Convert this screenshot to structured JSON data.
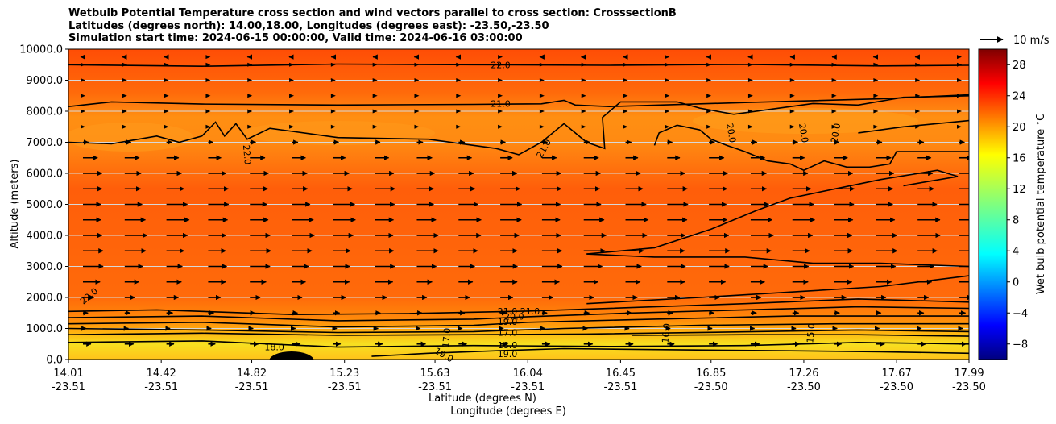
{
  "chart_data": {
    "type": "contour-quiver",
    "title_lines": [
      "Wetbulb Potential Temperature cross section and wind vectors parallel to cross section: CrosssectionB",
      "Latitudes (degrees north): 14.00,18.00, Longitudes (degrees east): -23.50,-23.50",
      "Simulation start time: 2024-06-15 00:00:00, Valid time: 2024-06-16 03:00:00"
    ],
    "xlabel_lat": "Latitude (degrees N)",
    "xlabel_lon": "Longitude (degrees E)",
    "ylabel": "Altitude (meters)",
    "xlim": [
      14.01,
      17.99
    ],
    "ylim": [
      0,
      10000
    ],
    "x_ticks": [
      {
        "lat": "14.01",
        "lon": "-23.51",
        "v": 14.01
      },
      {
        "lat": "14.42",
        "lon": "-23.51",
        "v": 14.42
      },
      {
        "lat": "14.82",
        "lon": "-23.51",
        "v": 14.82
      },
      {
        "lat": "15.23",
        "lon": "-23.51",
        "v": 15.23
      },
      {
        "lat": "15.63",
        "lon": "-23.51",
        "v": 15.63
      },
      {
        "lat": "16.04",
        "lon": "-23.51",
        "v": 16.04
      },
      {
        "lat": "16.45",
        "lon": "-23.51",
        "v": 16.45
      },
      {
        "lat": "16.85",
        "lon": "-23.50",
        "v": 16.85
      },
      {
        "lat": "17.26",
        "lon": "-23.50",
        "v": 17.26
      },
      {
        "lat": "17.67",
        "lon": "-23.50",
        "v": 17.67
      },
      {
        "lat": "17.99",
        "lon": "-23.50",
        "v": 17.99
      }
    ],
    "y_ticks": [
      "0.0",
      "1000.0",
      "2000.0",
      "3000.0",
      "4000.0",
      "5000.0",
      "6000.0",
      "7000.0",
      "8000.0",
      "9000.0",
      "10000.0"
    ],
    "grid": "horizontal",
    "colorbar": {
      "label": "Wet bulb potential temperature $^\\circ$C",
      "range": [
        -10,
        30
      ],
      "ticks": [
        "-8",
        "-4",
        "0",
        "4",
        "8",
        "12",
        "16",
        "20",
        "24",
        "28"
      ],
      "colormap": "jet"
    },
    "quiver_key": {
      "label": "10 m/s"
    },
    "contour_labels": [
      {
        "text": "22.0",
        "x": 15.92,
        "y": 9500,
        "rot": 0
      },
      {
        "text": "21.0",
        "x": 15.92,
        "y": 8250,
        "rot": 0
      },
      {
        "text": "22.0",
        "x": 14.8,
        "y": 6600,
        "rot": 85
      },
      {
        "text": "21.0",
        "x": 16.11,
        "y": 6800,
        "rot": -60
      },
      {
        "text": "20.0",
        "x": 16.94,
        "y": 7300,
        "rot": 80
      },
      {
        "text": "20.0",
        "x": 17.26,
        "y": 7300,
        "rot": 80
      },
      {
        "text": "20.0",
        "x": 17.4,
        "y": 7300,
        "rot": -80
      },
      {
        "text": "22.0",
        "x": 14.1,
        "y": 2050,
        "rot": -40
      },
      {
        "text": "21.0",
        "x": 15.95,
        "y": 1560,
        "rot": 0
      },
      {
        "text": "21.0",
        "x": 16.05,
        "y": 1560,
        "rot": 0
      },
      {
        "text": "20.0",
        "x": 15.98,
        "y": 1390,
        "rot": 0
      },
      {
        "text": "19.0",
        "x": 15.95,
        "y": 1220,
        "rot": 0
      },
      {
        "text": "17.0",
        "x": 15.95,
        "y": 870,
        "rot": 0
      },
      {
        "text": "18.0",
        "x": 14.92,
        "y": 400,
        "rot": 0
      },
      {
        "text": "18.0",
        "x": 15.95,
        "y": 470,
        "rot": 0
      },
      {
        "text": "19.0",
        "x": 15.95,
        "y": 180,
        "rot": 0
      },
      {
        "text": "19.0",
        "x": 15.67,
        "y": 150,
        "rot": 30
      },
      {
        "text": "17.0",
        "x": 15.68,
        "y": 700,
        "rot": -85
      },
      {
        "text": "16.0",
        "x": 16.65,
        "y": 850,
        "rot": -85
      },
      {
        "text": "15.0",
        "x": 17.29,
        "y": 850,
        "rot": -85
      }
    ],
    "contour_lines": [
      {
        "level": 22.0,
        "points": [
          [
            14.01,
            9500
          ],
          [
            14.6,
            9450
          ],
          [
            15.2,
            9520
          ],
          [
            15.8,
            9500
          ],
          [
            16.4,
            9480
          ],
          [
            17.0,
            9510
          ],
          [
            17.6,
            9460
          ],
          [
            17.99,
            9480
          ]
        ]
      },
      {
        "level": 21.0,
        "points": [
          [
            14.01,
            8150
          ],
          [
            14.2,
            8300
          ],
          [
            14.6,
            8230
          ],
          [
            15.2,
            8200
          ],
          [
            15.8,
            8220
          ],
          [
            16.1,
            8240
          ],
          [
            16.2,
            8350
          ],
          [
            16.25,
            8200
          ],
          [
            16.4,
            8150
          ],
          [
            17.0,
            8280
          ],
          [
            17.6,
            8400
          ],
          [
            17.99,
            8530
          ]
        ]
      },
      {
        "level": 21.0,
        "points": [
          [
            14.01,
            7000
          ],
          [
            14.2,
            6950
          ],
          [
            14.4,
            7200
          ],
          [
            14.5,
            7000
          ],
          [
            14.6,
            7200
          ],
          [
            14.66,
            7650
          ],
          [
            14.7,
            7200
          ],
          [
            14.75,
            7600
          ],
          [
            14.8,
            7100
          ],
          [
            14.9,
            7450
          ],
          [
            15.0,
            7350
          ],
          [
            15.2,
            7150
          ],
          [
            15.6,
            7100
          ],
          [
            15.9,
            6800
          ],
          [
            16.0,
            6600
          ],
          [
            16.1,
            7000
          ],
          [
            16.2,
            7600
          ],
          [
            16.3,
            7000
          ],
          [
            16.38,
            6800
          ],
          [
            16.37,
            7800
          ],
          [
            16.45,
            8300
          ],
          [
            16.7,
            8300
          ],
          [
            16.8,
            8100
          ],
          [
            16.95,
            7900
          ],
          [
            17.1,
            8050
          ],
          [
            17.3,
            8250
          ],
          [
            17.5,
            8200
          ],
          [
            17.7,
            8450
          ],
          [
            17.99,
            8500
          ]
        ]
      },
      {
        "level": 20.0,
        "points": [
          [
            16.6,
            6900
          ],
          [
            16.62,
            7300
          ],
          [
            16.7,
            7550
          ],
          [
            16.8,
            7400
          ],
          [
            16.85,
            7100
          ],
          [
            16.92,
            6900
          ],
          [
            17.0,
            6700
          ],
          [
            17.1,
            6400
          ],
          [
            17.2,
            6300
          ],
          [
            17.26,
            6100
          ],
          [
            17.35,
            6400
          ],
          [
            17.45,
            6200
          ],
          [
            17.55,
            6200
          ],
          [
            17.64,
            6300
          ],
          [
            17.67,
            6700
          ],
          [
            17.8,
            6700
          ],
          [
            17.99,
            6700
          ]
        ]
      },
      {
        "level": 20.0,
        "points": [
          [
            17.5,
            7300
          ],
          [
            17.7,
            7500
          ],
          [
            17.99,
            7700
          ]
        ]
      },
      {
        "level": 20.0,
        "points": [
          [
            16.3,
            3400
          ],
          [
            16.6,
            3600
          ],
          [
            16.85,
            4200
          ],
          [
            17.05,
            4800
          ],
          [
            17.2,
            5200
          ],
          [
            17.4,
            5500
          ],
          [
            17.6,
            5800
          ],
          [
            17.85,
            6100
          ],
          [
            17.94,
            5900
          ],
          [
            17.7,
            5600
          ]
        ]
      },
      {
        "level": 20.0,
        "points": [
          [
            16.3,
            3400
          ],
          [
            16.6,
            3300
          ],
          [
            17.0,
            3300
          ],
          [
            17.3,
            3100
          ],
          [
            17.6,
            3100
          ],
          [
            17.99,
            3000
          ]
        ]
      },
      {
        "level": 21.0,
        "points": [
          [
            16.3,
            1800
          ],
          [
            16.8,
            2000
          ],
          [
            17.26,
            2200
          ],
          [
            17.6,
            2350
          ],
          [
            17.99,
            2700
          ]
        ]
      },
      {
        "level": 21.0,
        "points": [
          [
            14.01,
            1550
          ],
          [
            14.4,
            1600
          ],
          [
            15.0,
            1450
          ],
          [
            15.5,
            1480
          ],
          [
            16.04,
            1560
          ],
          [
            16.6,
            1700
          ],
          [
            17.0,
            1800
          ],
          [
            17.5,
            1950
          ],
          [
            17.99,
            1850
          ]
        ]
      },
      {
        "level": 20.0,
        "points": [
          [
            14.01,
            1350
          ],
          [
            14.6,
            1400
          ],
          [
            15.2,
            1250
          ],
          [
            15.8,
            1300
          ],
          [
            16.04,
            1380
          ],
          [
            16.5,
            1500
          ],
          [
            17.0,
            1600
          ],
          [
            17.5,
            1700
          ],
          [
            17.99,
            1650
          ]
        ]
      },
      {
        "level": 19.0,
        "points": [
          [
            14.01,
            1150
          ],
          [
            14.6,
            1200
          ],
          [
            15.2,
            1050
          ],
          [
            15.8,
            1100
          ],
          [
            16.04,
            1200
          ],
          [
            16.6,
            1300
          ],
          [
            17.2,
            1400
          ],
          [
            17.99,
            1400
          ]
        ]
      },
      {
        "level": 18.0,
        "points": [
          [
            14.01,
            1000
          ],
          [
            14.6,
            950
          ],
          [
            15.2,
            870
          ],
          [
            15.8,
            900
          ],
          [
            16.2,
            1000
          ],
          [
            16.8,
            1100
          ],
          [
            17.4,
            1150
          ],
          [
            17.99,
            1150
          ]
        ]
      },
      {
        "level": 17.0,
        "points": [
          [
            14.01,
            800
          ],
          [
            14.6,
            850
          ],
          [
            15.2,
            780
          ],
          [
            15.8,
            800
          ],
          [
            16.3,
            820
          ],
          [
            16.9,
            880
          ],
          [
            17.5,
            950
          ],
          [
            17.99,
            900
          ]
        ]
      },
      {
        "level": 16.0,
        "points": [
          [
            16.5,
            780
          ],
          [
            17.0,
            800
          ],
          [
            17.5,
            800
          ],
          [
            17.99,
            750
          ]
        ]
      },
      {
        "level": 18.0,
        "points": [
          [
            14.01,
            550
          ],
          [
            14.6,
            600
          ],
          [
            15.2,
            400
          ],
          [
            15.8,
            450
          ],
          [
            16.4,
            420
          ],
          [
            17.0,
            450
          ],
          [
            17.5,
            550
          ],
          [
            17.99,
            500
          ]
        ]
      },
      {
        "level": 19.0,
        "points": [
          [
            15.35,
            100
          ],
          [
            15.6,
            200
          ],
          [
            15.9,
            280
          ],
          [
            16.2,
            350
          ],
          [
            16.6,
            320
          ],
          [
            17.2,
            280
          ],
          [
            17.6,
            250
          ],
          [
            17.99,
            200
          ]
        ]
      }
    ],
    "wind": {
      "speed_scale_ms": 10,
      "levels": [
        {
          "z": 9750,
          "u": -1.0
        },
        {
          "z": 9500,
          "u": -0.6
        },
        {
          "z": 9000,
          "u": -0.3
        },
        {
          "z": 8500,
          "u": 0.2
        },
        {
          "z": 8000,
          "u": 0.0
        },
        {
          "z": 7500,
          "u": 0.5
        },
        {
          "z": 7000,
          "u": 2.5
        },
        {
          "z": 6500,
          "u": 6.0
        },
        {
          "z": 6000,
          "u": 7.5
        },
        {
          "z": 5500,
          "u": 8.0
        },
        {
          "z": 5000,
          "u": 8.5
        },
        {
          "z": 4500,
          "u": 9.0
        },
        {
          "z": 4000,
          "u": 9.0
        },
        {
          "z": 3500,
          "u": 8.5
        },
        {
          "z": 3000,
          "u": 8.0
        },
        {
          "z": 2500,
          "u": 7.0
        },
        {
          "z": 2000,
          "u": 5.0
        },
        {
          "z": 1500,
          "u": 2.5
        },
        {
          "z": 1000,
          "u": 1.5
        },
        {
          "z": 500,
          "u": 3.5
        }
      ]
    }
  }
}
